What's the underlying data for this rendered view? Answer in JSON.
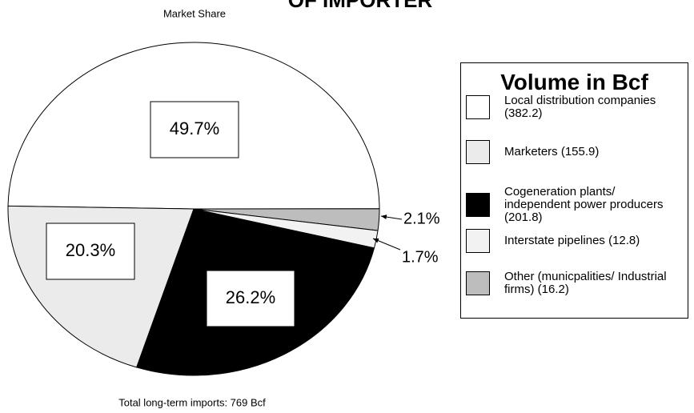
{
  "chart_data": {
    "type": "pie",
    "title": "OF IMPORTER",
    "subtitle": "Market Share",
    "footnote": "Total long-term imports: 769 Bcf",
    "legend_title": "Volume in Bcf",
    "categories": [
      "Local distribution companies (382.2)",
      "Marketers (155.9)",
      "Cogeneration plants/ independent power producers (201.8)",
      "Interstate pipelines (12.8)",
      "Other (municpalities/ Industrial firms) (16.2)"
    ],
    "values": [
      49.7,
      20.3,
      26.2,
      1.7,
      2.1
    ],
    "value_labels": [
      "49.7%",
      "20.3%",
      "26.2%",
      "1.7%",
      "2.1%"
    ],
    "colors": [
      "#ffffff",
      "#ebebeb",
      "#000000",
      "#f2f2f2",
      "#bdbdbd"
    ]
  }
}
